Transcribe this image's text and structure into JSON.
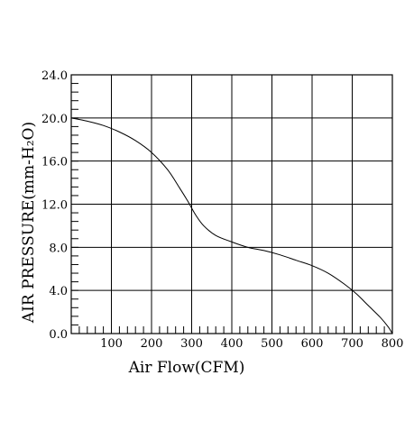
{
  "chart_data": {
    "type": "line",
    "title": "",
    "xlabel": "Air Flow(CFM)",
    "ylabel": "AIR PRESSURE(mm-H₂O)",
    "xlim": [
      0,
      800
    ],
    "ylim": [
      0,
      24
    ],
    "grid": true,
    "x_ticks": [
      100,
      200,
      300,
      400,
      500,
      600,
      700,
      800
    ],
    "x_tick_labels": [
      "100",
      "200",
      "300",
      "400",
      "500",
      "600",
      "700",
      "800"
    ],
    "y_ticks": [
      0,
      4,
      8,
      12,
      16,
      20,
      24
    ],
    "y_tick_labels": [
      "0.0",
      "4.0",
      "8.0",
      "12.0",
      "16.0",
      "20.0",
      "24.0"
    ],
    "series": [
      {
        "x": [
          0,
          40,
          80,
          120,
          160,
          200,
          240,
          270,
          290,
          310,
          330,
          360,
          400,
          440,
          480,
          520,
          560,
          600,
          640,
          680,
          710,
          740,
          770,
          790,
          800
        ],
        "y": [
          20.0,
          19.7,
          19.3,
          18.7,
          17.9,
          16.8,
          15.2,
          13.5,
          12.3,
          11.0,
          10.0,
          9.1,
          8.5,
          8.0,
          7.7,
          7.3,
          6.8,
          6.3,
          5.6,
          4.6,
          3.7,
          2.6,
          1.5,
          0.6,
          0.0
        ]
      }
    ]
  }
}
